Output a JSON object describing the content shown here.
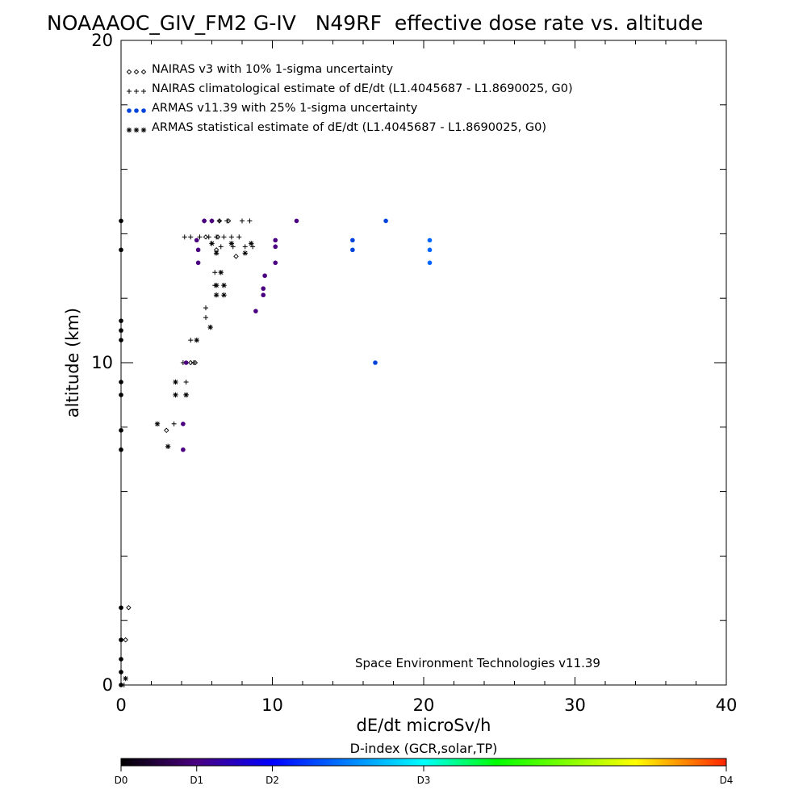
{
  "chart_data": {
    "type": "scatter",
    "title": "NOAAAOC_GIV_FM2 G-IV   N49RF  effective dose rate vs. altitude",
    "xlabel": "dE/dt microSv/h",
    "ylabel": "altitude (km)",
    "xlim": [
      0,
      40
    ],
    "ylim": [
      0,
      20
    ],
    "x_ticks": [
      0,
      10,
      20,
      30,
      40
    ],
    "y_ticks": [
      0,
      10,
      20
    ],
    "grid": false,
    "legend_position": "top-left",
    "annotation": "Space Environment Technologies v11.39",
    "legend": [
      {
        "symbol": "◇◇◇",
        "label": "NAIRAS v3 with 10% 1-sigma uncertainty"
      },
      {
        "symbol": "+++",
        "label": "NAIRAS climatological estimate of dE/dt (L1.4045687 - L1.8690025, G0)"
      },
      {
        "symbol": "●●●",
        "label": "ARMAS v11.39 with 25% 1-sigma uncertainty"
      },
      {
        "symbol": "***",
        "label": "ARMAS statistical estimate of dE/dt (L1.4045687 - L1.8690025, G0)"
      }
    ],
    "colorbar": {
      "title": "D-index (GCR,solar,TP)",
      "labels": [
        "D0",
        "D1",
        "D2",
        "D3",
        "D4"
      ],
      "positions": [
        0,
        0.125,
        0.25,
        0.5,
        1.0
      ]
    },
    "series": [
      {
        "name": "NAIRAS v3 with 10% 1-sigma uncertainty",
        "marker": "diamond",
        "points": [
          [
            6.5,
            14.4
          ],
          [
            7.1,
            14.4
          ],
          [
            5.6,
            13.9
          ],
          [
            6.4,
            13.9
          ],
          [
            6.3,
            13.5
          ],
          [
            7.6,
            13.3
          ],
          [
            4.9,
            10.0
          ],
          [
            4.6,
            10.0
          ],
          [
            3.0,
            7.9
          ],
          [
            0.5,
            2.4
          ],
          [
            0.3,
            1.4
          ]
        ]
      },
      {
        "name": "NAIRAS climatological estimate of dE/dt (L1.4045687 - L1.8690025, G0)",
        "marker": "plus",
        "points": [
          [
            5.5,
            14.4
          ],
          [
            6.0,
            14.4
          ],
          [
            6.5,
            14.4
          ],
          [
            7.0,
            14.4
          ],
          [
            8.0,
            14.4
          ],
          [
            8.5,
            14.4
          ],
          [
            4.2,
            13.9
          ],
          [
            4.6,
            13.9
          ],
          [
            5.2,
            13.9
          ],
          [
            5.8,
            13.9
          ],
          [
            6.3,
            13.9
          ],
          [
            6.8,
            13.9
          ],
          [
            7.3,
            13.9
          ],
          [
            7.8,
            13.9
          ],
          [
            6.6,
            13.6
          ],
          [
            7.4,
            13.6
          ],
          [
            8.2,
            13.6
          ],
          [
            8.7,
            13.6
          ],
          [
            6.2,
            12.8
          ],
          [
            6.2,
            12.4
          ],
          [
            5.6,
            11.7
          ],
          [
            5.6,
            11.4
          ],
          [
            4.6,
            10.7
          ],
          [
            4.8,
            10.0
          ],
          [
            4.1,
            10.0
          ],
          [
            4.3,
            9.4
          ],
          [
            4.3,
            9.0
          ],
          [
            3.5,
            8.1
          ],
          [
            0.2,
            0.0
          ]
        ]
      },
      {
        "name": "ARMAS v11.39 with 25% 1-sigma uncertainty",
        "marker": "dot",
        "points": [
          [
            0.0,
            14.4
          ],
          [
            0.0,
            13.5
          ],
          [
            5.5,
            14.4
          ],
          [
            6.0,
            14.4
          ],
          [
            11.6,
            14.4
          ],
          [
            17.5,
            14.4
          ],
          [
            5.0,
            13.8
          ],
          [
            10.2,
            13.8
          ],
          [
            15.3,
            13.8
          ],
          [
            20.4,
            13.8
          ],
          [
            5.1,
            13.5
          ],
          [
            10.2,
            13.6
          ],
          [
            15.3,
            13.5
          ],
          [
            20.4,
            13.5
          ],
          [
            5.1,
            13.1
          ],
          [
            10.2,
            13.1
          ],
          [
            20.4,
            13.1
          ],
          [
            9.5,
            12.7
          ],
          [
            9.4,
            12.3
          ],
          [
            9.4,
            12.1
          ],
          [
            8.9,
            11.6
          ],
          [
            0.0,
            11.3
          ],
          [
            0.0,
            11.0
          ],
          [
            0.0,
            10.7
          ],
          [
            4.3,
            10.0
          ],
          [
            16.8,
            10.0
          ],
          [
            0.0,
            9.4
          ],
          [
            0.0,
            9.0
          ],
          [
            4.1,
            8.1
          ],
          [
            0.0,
            7.9
          ],
          [
            0.0,
            7.3
          ],
          [
            4.1,
            7.3
          ],
          [
            0.0,
            2.4
          ],
          [
            0.0,
            1.4
          ],
          [
            0.0,
            0.8
          ],
          [
            0.0,
            0.4
          ],
          [
            0.0,
            0.0
          ]
        ]
      },
      {
        "name": "ARMAS statistical estimate of dE/dt (L1.4045687 - L1.8690025, G0)",
        "marker": "asterisk",
        "points": [
          [
            6.0,
            13.7
          ],
          [
            7.3,
            13.7
          ],
          [
            8.6,
            13.7
          ],
          [
            6.3,
            13.4
          ],
          [
            8.2,
            13.4
          ],
          [
            6.6,
            12.8
          ],
          [
            6.3,
            12.4
          ],
          [
            6.8,
            12.4
          ],
          [
            6.3,
            12.1
          ],
          [
            6.8,
            12.1
          ],
          [
            5.9,
            11.1
          ],
          [
            5.0,
            10.7
          ],
          [
            3.6,
            9.4
          ],
          [
            3.6,
            9.0
          ],
          [
            4.3,
            9.0
          ],
          [
            2.4,
            8.1
          ],
          [
            3.1,
            7.4
          ],
          [
            0.3,
            0.2
          ]
        ]
      }
    ],
    "dot_colors": {
      "dark": "#000000",
      "purple": "#4a0080",
      "blue": "#0044dd",
      "lightblue": "#0066ff"
    },
    "dot_color_index": [
      "dark",
      "dark",
      "purple",
      "purple",
      "purple",
      "blue",
      "purple",
      "purple",
      "blue",
      "lightblue",
      "purple",
      "purple",
      "blue",
      "lightblue",
      "purple",
      "purple",
      "lightblue",
      "purple",
      "purple",
      "purple",
      "purple",
      "dark",
      "dark",
      "dark",
      "purple",
      "blue",
      "dark",
      "dark",
      "purple",
      "dark",
      "dark",
      "purple",
      "dark",
      "dark",
      "dark",
      "dark",
      "dark"
    ]
  }
}
